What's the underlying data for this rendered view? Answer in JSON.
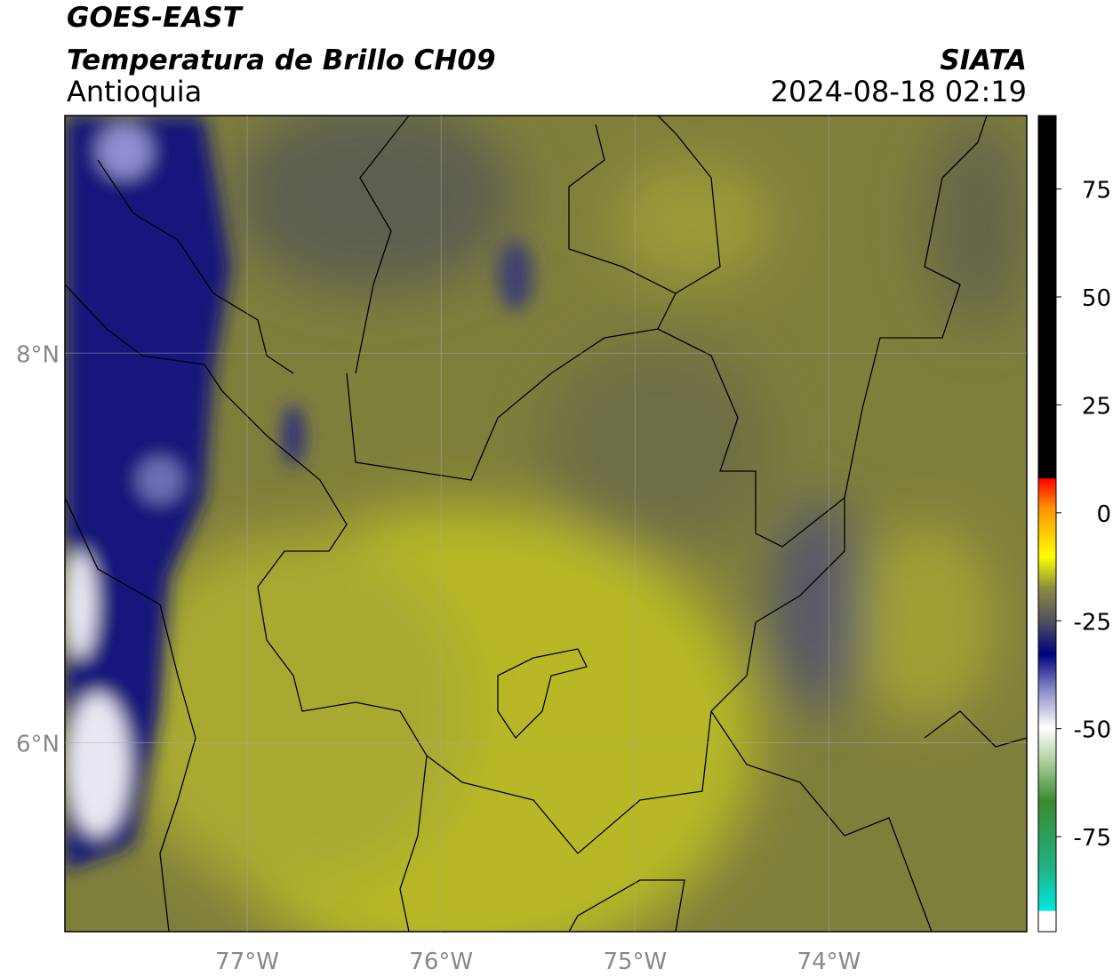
{
  "header": {
    "satellite": "GOES-EAST",
    "product": "Temperatura de Brillo CH09",
    "region": "Antioquia",
    "source": "SIATA",
    "datetime": "2024-08-18 02:19"
  },
  "map": {
    "lonlim": [
      -77.94,
      -72.98
    ],
    "latlim": [
      5.03,
      9.22
    ],
    "lonticks": [
      {
        "value": -77,
        "label": "77°W"
      },
      {
        "value": -76,
        "label": "76°W"
      },
      {
        "value": -75,
        "label": "75°W"
      },
      {
        "value": -74,
        "label": "74°W"
      }
    ],
    "latticks": [
      {
        "value": 8,
        "label": "8°N"
      },
      {
        "value": 6,
        "label": "6°N"
      }
    ],
    "grid": true
  },
  "colorbar": {
    "lim": [
      -97,
      92
    ],
    "ticks": [
      75,
      50,
      25,
      0,
      -25,
      -50,
      -75
    ]
  }
}
